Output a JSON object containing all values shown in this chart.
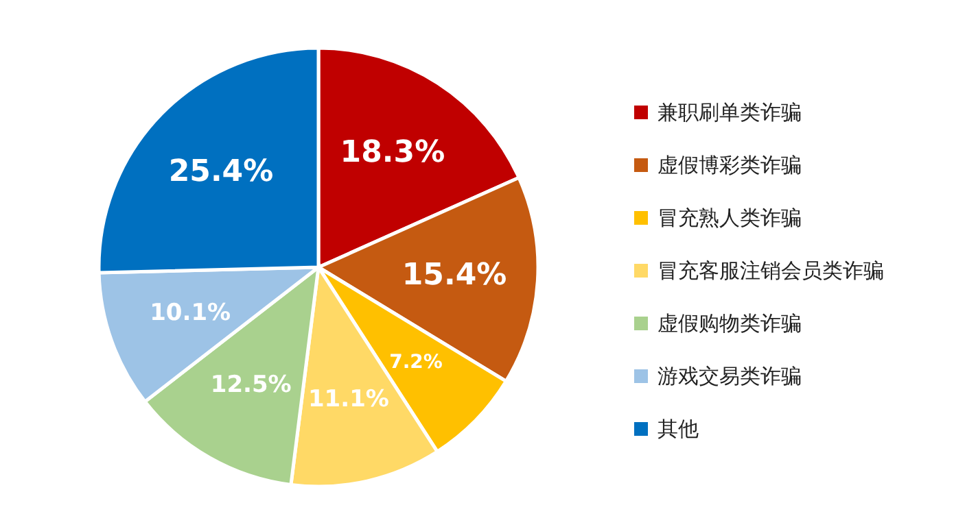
{
  "chart_data": {
    "type": "pie",
    "categories": [
      "兼职刷单类诈骗",
      "虚假博彩类诈骗",
      "冒充熟人类诈骗",
      "冒充客服注销会员类诈骗",
      "虚假购物类诈骗",
      "游戏交易类诈骗",
      "其他"
    ],
    "values": [
      18.3,
      15.4,
      7.2,
      11.1,
      12.5,
      10.1,
      25.4
    ],
    "value_labels": [
      "18.3%",
      "15.4%",
      "7.2%",
      "11.1%",
      "12.5%",
      "10.1%",
      "25.4%"
    ],
    "colors": [
      "#c00000",
      "#c55a11",
      "#ffc000",
      "#ffd966",
      "#a9d18e",
      "#9dc3e6",
      "#0070c0"
    ],
    "legend": "right"
  }
}
